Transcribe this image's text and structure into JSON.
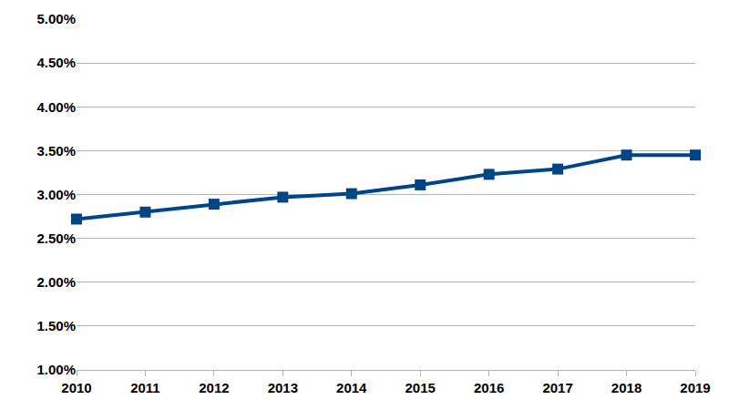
{
  "chart_data": {
    "type": "line",
    "categories": [
      "2010",
      "2011",
      "2012",
      "2013",
      "2014",
      "2015",
      "2016",
      "2017",
      "2018",
      "2019"
    ],
    "values": [
      2.72,
      2.8,
      2.89,
      2.97,
      3.01,
      3.11,
      3.23,
      3.29,
      3.45,
      3.45
    ],
    "color": "#004586",
    "marker": "square",
    "line_style": "solid",
    "ylim": [
      1,
      5
    ],
    "yticks": [
      {
        "value": 1,
        "label": "1.00%"
      },
      {
        "value": 1.5,
        "label": "1.50%"
      },
      {
        "value": 2,
        "label": "2.00%"
      },
      {
        "value": 2.5,
        "label": "2.50%"
      },
      {
        "value": 3,
        "label": "3.00%"
      },
      {
        "value": 3.5,
        "label": "3.50%"
      },
      {
        "value": 4,
        "label": "4.00%"
      },
      {
        "value": 4.5,
        "label": "4.50%"
      },
      {
        "value": 5,
        "label": "5.00%"
      }
    ],
    "grid": true
  }
}
